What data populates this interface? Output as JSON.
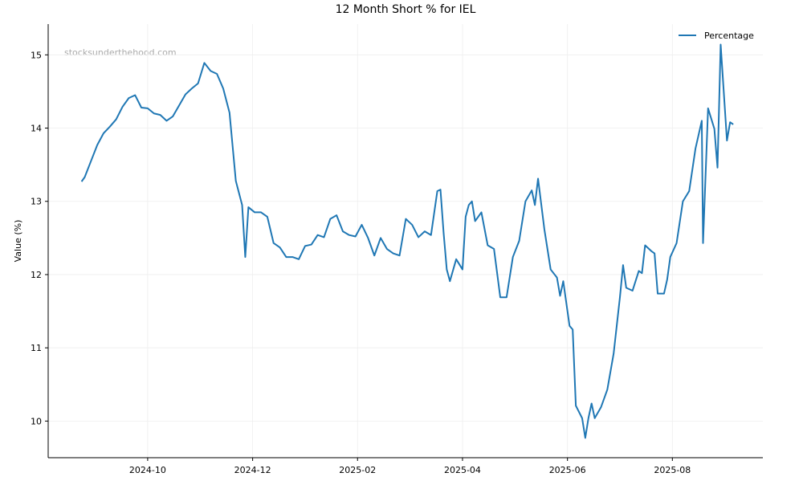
{
  "chart_data": {
    "type": "line",
    "title": "12 Month Short % for IEL",
    "y_label": "Value (%)",
    "watermark": "stocksunderthehood.com",
    "legend_position": "upper right",
    "grid": true,
    "xlim": [
      2024.592,
      2025.727
    ],
    "ylim": [
      9.5,
      15.42
    ],
    "xticks": [
      {
        "value": 2024.75,
        "label": "2024-10"
      },
      {
        "value": 2024.9167,
        "label": "2024-12"
      },
      {
        "value": 2025.0833,
        "label": "2025-02"
      },
      {
        "value": 2025.25,
        "label": "2025-04"
      },
      {
        "value": 2025.4167,
        "label": "2025-06"
      },
      {
        "value": 2025.5833,
        "label": "2025-08"
      }
    ],
    "yticks": [
      10,
      11,
      12,
      13,
      14,
      15
    ],
    "x": [
      2024.645,
      2024.65,
      2024.66,
      2024.67,
      2024.68,
      2024.69,
      2024.7,
      2024.71,
      2024.72,
      2024.73,
      2024.74,
      2024.75,
      2024.76,
      2024.77,
      2024.78,
      2024.79,
      2024.8,
      2024.81,
      2024.82,
      2024.83,
      2024.84,
      2024.85,
      2024.86,
      2024.87,
      2024.88,
      2024.89,
      2024.9,
      2024.905,
      2024.91,
      2024.92,
      2024.93,
      2024.94,
      2024.95,
      2024.96,
      2024.97,
      2024.98,
      2024.99,
      2025.0,
      2025.01,
      2025.02,
      2025.03,
      2025.04,
      2025.05,
      2025.06,
      2025.07,
      2025.08,
      2025.09,
      2025.1,
      2025.11,
      2025.12,
      2025.13,
      2025.14,
      2025.15,
      2025.16,
      2025.17,
      2025.18,
      2025.19,
      2025.2,
      2025.21,
      2025.215,
      2025.22,
      2025.225,
      2025.23,
      2025.24,
      2025.25,
      2025.255,
      2025.26,
      2025.265,
      2025.27,
      2025.28,
      2025.29,
      2025.3,
      2025.31,
      2025.32,
      2025.33,
      2025.34,
      2025.35,
      2025.36,
      2025.365,
      2025.37,
      2025.38,
      2025.39,
      2025.4,
      2025.405,
      2025.41,
      2025.42,
      2025.425,
      2025.43,
      2025.44,
      2025.445,
      2025.45,
      2025.455,
      2025.46,
      2025.47,
      2025.48,
      2025.49,
      2025.5,
      2025.505,
      2025.51,
      2025.52,
      2025.53,
      2025.535,
      2025.54,
      2025.55,
      2025.555,
      2025.56,
      2025.57,
      2025.575,
      2025.58,
      2025.59,
      2025.6,
      2025.61,
      2025.62,
      2025.63,
      2025.632,
      2025.64,
      2025.65,
      2025.655,
      2025.66,
      2025.67,
      2025.675,
      2025.68
    ],
    "series": [
      {
        "name": "Percentage",
        "color": "#1f77b4",
        "values": [
          13.27,
          13.33,
          13.55,
          13.77,
          13.93,
          14.02,
          14.12,
          14.29,
          14.41,
          14.45,
          14.28,
          14.27,
          14.2,
          14.18,
          14.1,
          14.16,
          14.31,
          14.46,
          14.54,
          14.61,
          14.89,
          14.78,
          14.74,
          14.54,
          14.21,
          13.28,
          12.95,
          12.24,
          12.92,
          12.85,
          12.85,
          12.79,
          12.43,
          12.37,
          12.24,
          12.24,
          12.21,
          12.39,
          12.41,
          12.54,
          12.51,
          12.76,
          12.81,
          12.59,
          12.54,
          12.52,
          12.68,
          12.5,
          12.26,
          12.5,
          12.35,
          12.29,
          12.26,
          12.76,
          12.68,
          12.51,
          12.59,
          12.54,
          13.14,
          13.16,
          12.57,
          12.07,
          11.91,
          12.21,
          12.07,
          12.79,
          12.95,
          13.0,
          12.73,
          12.85,
          12.4,
          12.35,
          11.69,
          11.69,
          12.24,
          12.46,
          13.0,
          13.15,
          12.95,
          13.31,
          12.62,
          12.07,
          11.96,
          11.71,
          11.91,
          11.3,
          11.25,
          10.21,
          10.04,
          9.77,
          10.04,
          10.24,
          10.04,
          10.19,
          10.43,
          10.92,
          11.69,
          12.13,
          11.82,
          11.78,
          12.05,
          12.02,
          12.4,
          12.32,
          12.29,
          11.74,
          11.74,
          11.93,
          12.24,
          12.43,
          13.0,
          13.14,
          13.72,
          14.1,
          12.43,
          14.27,
          13.99,
          13.46,
          15.14,
          13.83,
          14.08,
          14.05
        ]
      }
    ]
  }
}
